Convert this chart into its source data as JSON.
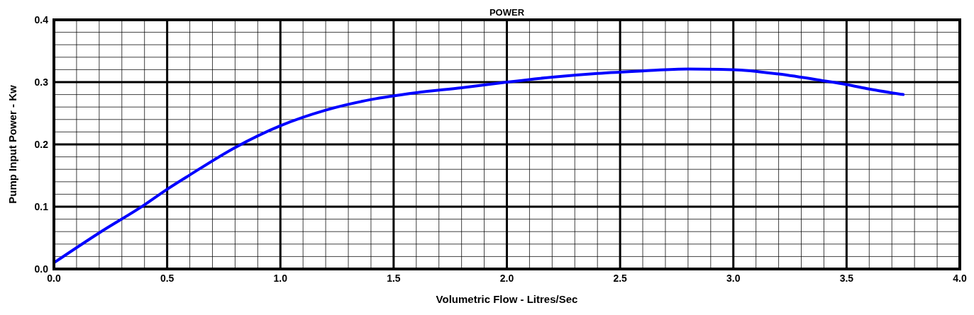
{
  "chart_data": {
    "type": "line",
    "title": "POWER",
    "xlabel": "Volumetric Flow - Litres/Sec",
    "ylabel": "Pump Input Power - Kw",
    "x": [
      0,
      0.2,
      0.4,
      0.5,
      0.6,
      0.8,
      1.0,
      1.2,
      1.4,
      1.6,
      1.8,
      2.0,
      2.2,
      2.4,
      2.6,
      2.8,
      3.0,
      3.2,
      3.4,
      3.5,
      3.6,
      3.75
    ],
    "series": [
      {
        "color": "#0000ff",
        "values": [
          0.01,
          0.058,
          0.103,
          0.128,
          0.151,
          0.195,
          0.23,
          0.255,
          0.272,
          0.283,
          0.291,
          0.3,
          0.308,
          0.314,
          0.318,
          0.321,
          0.32,
          0.313,
          0.302,
          0.296,
          0.289,
          0.28
        ]
      }
    ],
    "xlim": [
      0,
      4
    ],
    "ylim": [
      0,
      0.4
    ],
    "xticks": [
      {
        "value": 0,
        "label": "0.0"
      },
      {
        "value": 0.1,
        "label": null
      },
      {
        "value": 0.2,
        "label": null
      },
      {
        "value": 0.3,
        "label": null
      },
      {
        "value": 0.4,
        "label": null
      },
      {
        "value": 0.5,
        "label": "0.5"
      },
      {
        "value": 0.6,
        "label": null
      },
      {
        "value": 0.7,
        "label": null
      },
      {
        "value": 0.8,
        "label": null
      },
      {
        "value": 0.9,
        "label": null
      },
      {
        "value": 1,
        "label": "1.0"
      },
      {
        "value": 1.1,
        "label": null
      },
      {
        "value": 1.2,
        "label": null
      },
      {
        "value": 1.3,
        "label": null
      },
      {
        "value": 1.4,
        "label": null
      },
      {
        "value": 1.5,
        "label": "1.5"
      },
      {
        "value": 1.6,
        "label": null
      },
      {
        "value": 1.7,
        "label": null
      },
      {
        "value": 1.8,
        "label": null
      },
      {
        "value": 1.9,
        "label": null
      },
      {
        "value": 2,
        "label": "2.0"
      },
      {
        "value": 2.1,
        "label": null
      },
      {
        "value": 2.2,
        "label": null
      },
      {
        "value": 2.3,
        "label": null
      },
      {
        "value": 2.4,
        "label": null
      },
      {
        "value": 2.5,
        "label": "2.5"
      },
      {
        "value": 2.6,
        "label": null
      },
      {
        "value": 2.7,
        "label": null
      },
      {
        "value": 2.8,
        "label": null
      },
      {
        "value": 2.9,
        "label": null
      },
      {
        "value": 3,
        "label": "3.0"
      },
      {
        "value": 3.1,
        "label": null
      },
      {
        "value": 3.2,
        "label": null
      },
      {
        "value": 3.3,
        "label": null
      },
      {
        "value": 3.4,
        "label": null
      },
      {
        "value": 3.5,
        "label": "3.5"
      },
      {
        "value": 3.6,
        "label": null
      },
      {
        "value": 3.7,
        "label": null
      },
      {
        "value": 3.8,
        "label": null
      },
      {
        "value": 3.9,
        "label": null
      },
      {
        "value": 4,
        "label": "4.0"
      }
    ],
    "yticks": [
      {
        "value": 0,
        "label": "0.0"
      },
      {
        "value": 0.02,
        "label": null
      },
      {
        "value": 0.04,
        "label": null
      },
      {
        "value": 0.06,
        "label": null
      },
      {
        "value": 0.08,
        "label": null
      },
      {
        "value": 0.1,
        "label": "0.1"
      },
      {
        "value": 0.12,
        "label": null
      },
      {
        "value": 0.14,
        "label": null
      },
      {
        "value": 0.16,
        "label": null
      },
      {
        "value": 0.18,
        "label": null
      },
      {
        "value": 0.2,
        "label": "0.2"
      },
      {
        "value": 0.22,
        "label": null
      },
      {
        "value": 0.24,
        "label": null
      },
      {
        "value": 0.26,
        "label": null
      },
      {
        "value": 0.28,
        "label": null
      },
      {
        "value": 0.3,
        "label": "0.3"
      },
      {
        "value": 0.32,
        "label": null
      },
      {
        "value": 0.34,
        "label": null
      },
      {
        "value": 0.36,
        "label": null
      },
      {
        "value": 0.38,
        "label": null
      },
      {
        "value": 0.4,
        "label": "0.4"
      }
    ],
    "grid": true,
    "marker": "none",
    "line_style": "solid"
  }
}
